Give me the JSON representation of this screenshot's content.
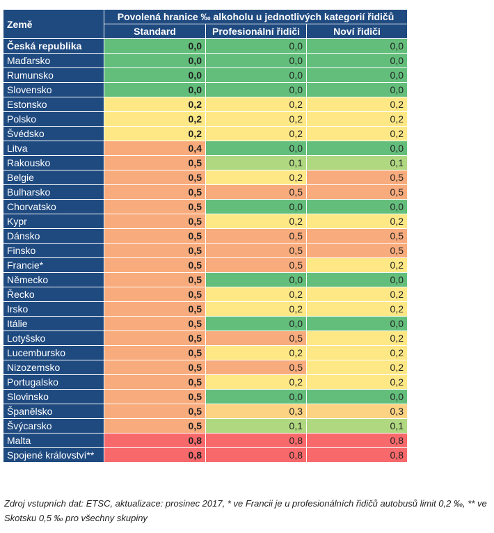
{
  "header": {
    "country_label": "Země",
    "title": "Povolená hranice ‰ alkoholu u jednotlivých kategorií řidičů",
    "columns": [
      "Standard",
      "Profesionální řidiči",
      "Noví řidiči"
    ]
  },
  "colors": {
    "header_bg": "#1f4a80",
    "0,0": "#63be7b",
    "0,1": "#b0d881",
    "0,2": "#fde885",
    "0,3": "#fcd283",
    "0,4": "#f9aa7a",
    "0,5": "#f8ab7c",
    "0,8": "#f8696b"
  },
  "rows": [
    {
      "country": "Česká republika",
      "values": [
        "0,0",
        "0,0",
        "0,0"
      ]
    },
    {
      "country": "Maďarsko",
      "values": [
        "0,0",
        "0,0",
        "0,0"
      ]
    },
    {
      "country": "Rumunsko",
      "values": [
        "0,0",
        "0,0",
        "0,0"
      ]
    },
    {
      "country": "Slovensko",
      "values": [
        "0,0",
        "0,0",
        "0,0"
      ]
    },
    {
      "country": "Estonsko",
      "values": [
        "0,2",
        "0,2",
        "0,2"
      ]
    },
    {
      "country": "Polsko",
      "values": [
        "0,2",
        "0,2",
        "0,2"
      ]
    },
    {
      "country": "Švédsko",
      "values": [
        "0,2",
        "0,2",
        "0,2"
      ]
    },
    {
      "country": "Litva",
      "values": [
        "0,4",
        "0,0",
        "0,0"
      ]
    },
    {
      "country": "Rakousko",
      "values": [
        "0,5",
        "0,1",
        "0,1"
      ]
    },
    {
      "country": "Belgie",
      "values": [
        "0,5",
        "0,2",
        "0,5"
      ]
    },
    {
      "country": "Bulharsko",
      "values": [
        "0,5",
        "0,5",
        "0,5"
      ]
    },
    {
      "country": "Chorvatsko",
      "values": [
        "0,5",
        "0,0",
        "0,0"
      ]
    },
    {
      "country": "Kypr",
      "values": [
        "0,5",
        "0,2",
        "0,2"
      ]
    },
    {
      "country": "Dánsko",
      "values": [
        "0,5",
        "0,5",
        "0,5"
      ]
    },
    {
      "country": "Finsko",
      "values": [
        "0,5",
        "0,5",
        "0,5"
      ]
    },
    {
      "country": "Francie*",
      "values": [
        "0,5",
        "0,5",
        "0,2"
      ]
    },
    {
      "country": "Německo",
      "values": [
        "0,5",
        "0,0",
        "0,0"
      ]
    },
    {
      "country": "Řecko",
      "values": [
        "0,5",
        "0,2",
        "0,2"
      ]
    },
    {
      "country": "Irsko",
      "values": [
        "0,5",
        "0,2",
        "0,2"
      ]
    },
    {
      "country": "Itálie",
      "values": [
        "0,5",
        "0,0",
        "0,0"
      ]
    },
    {
      "country": "Lotyšsko",
      "values": [
        "0,5",
        "0,5",
        "0,2"
      ]
    },
    {
      "country": "Lucembursko",
      "values": [
        "0,5",
        "0,2",
        "0,2"
      ]
    },
    {
      "country": "Nizozemsko",
      "values": [
        "0,5",
        "0,5",
        "0,2"
      ]
    },
    {
      "country": "Portugalsko",
      "values": [
        "0,5",
        "0,2",
        "0,2"
      ]
    },
    {
      "country": "Slovinsko",
      "values": [
        "0,5",
        "0,0",
        "0,0"
      ]
    },
    {
      "country": "Španělsko",
      "values": [
        "0,5",
        "0,3",
        "0,3"
      ]
    },
    {
      "country": "Švýcarsko",
      "values": [
        "0,5",
        "0,1",
        "0,1"
      ]
    },
    {
      "country": "Malta",
      "values": [
        "0,8",
        "0,8",
        "0,8"
      ]
    },
    {
      "country": "Spojené království**",
      "values": [
        "0,8",
        "0,8",
        "0,8"
      ]
    }
  ],
  "note": "Zdroj vstupních dat: ETSC, aktualizace: prosinec 2017, * ve Francii je u profesionálních řidičů autobusů limit 0,2 ‰, ** ve Skotsku 0,5 ‰ pro všechny skupiny"
}
